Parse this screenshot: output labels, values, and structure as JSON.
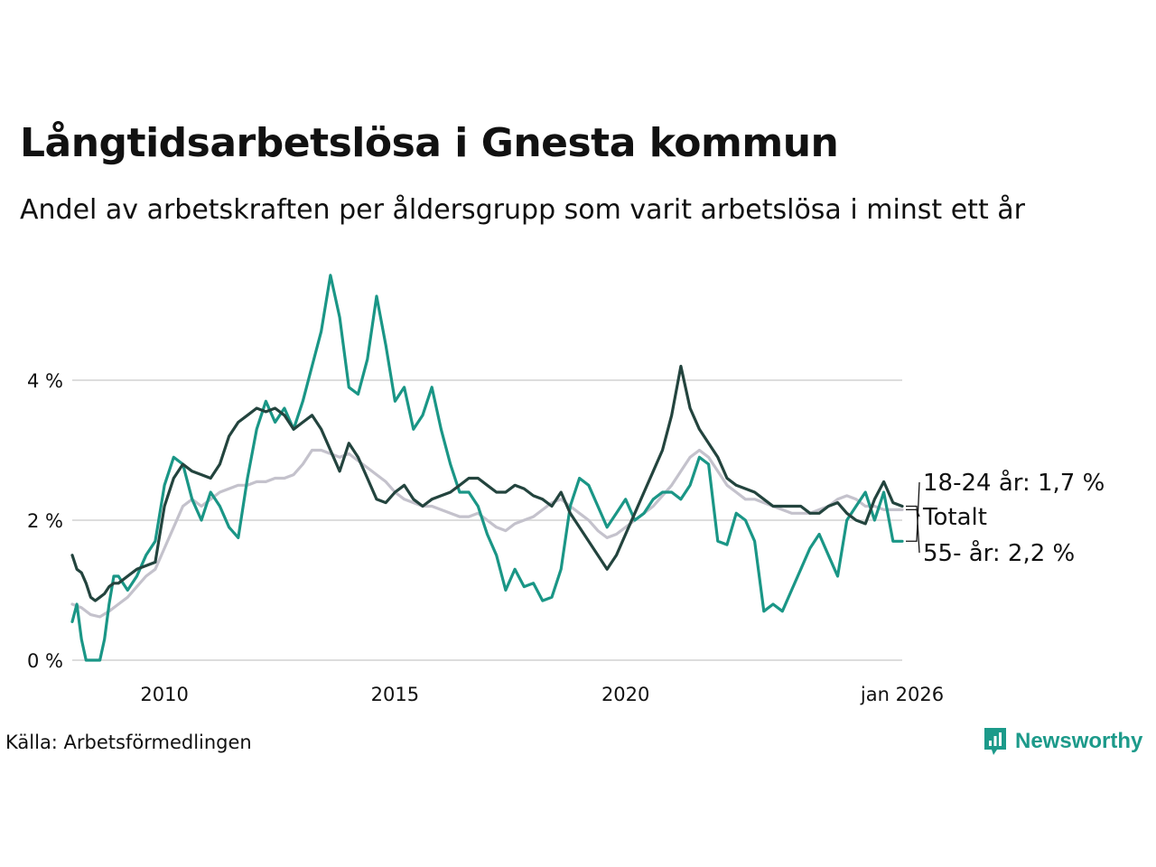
{
  "title": "Långtidsarbetslösa i Gnesta kommun",
  "subtitle": "Andel av arbetskraften per åldersgrupp som varit arbetslösa i minst ett år",
  "source": "Källa: Arbetsförmedlingen",
  "brand": "Newsworthy",
  "colors": {
    "totalt": "#c4c2cc",
    "young": "#1a9686",
    "old": "#23443e",
    "grid": "#dddddd",
    "brand": "#1c9a8a"
  },
  "chart_data": {
    "type": "line",
    "title": "Långtidsarbetslösa i Gnesta kommun",
    "xlabel": "",
    "ylabel": "",
    "x_range": [
      2008.0,
      2026.0
    ],
    "ylim": [
      0,
      4.6
    ],
    "y_ticks": [
      {
        "value": 0,
        "label": "0 %"
      },
      {
        "value": 2,
        "label": "2 %"
      },
      {
        "value": 4,
        "label": "4 %"
      }
    ],
    "x_ticks": [
      {
        "value": 2010,
        "label": "2010"
      },
      {
        "value": 2015,
        "label": "2015"
      },
      {
        "value": 2020,
        "label": "2020"
      },
      {
        "value": 2026,
        "label": "jan 2026"
      }
    ],
    "series": [
      {
        "name": "Totalt",
        "label": "Totalt",
        "x": [
          2008.0,
          2008.2,
          2008.4,
          2008.6,
          2008.8,
          2009.0,
          2009.2,
          2009.4,
          2009.6,
          2009.8,
          2010.0,
          2010.2,
          2010.4,
          2010.6,
          2010.8,
          2011.0,
          2011.2,
          2011.4,
          2011.6,
          2011.8,
          2012.0,
          2012.2,
          2012.4,
          2012.6,
          2012.8,
          2013.0,
          2013.2,
          2013.4,
          2013.6,
          2013.8,
          2014.0,
          2014.2,
          2014.4,
          2014.6,
          2014.8,
          2015.0,
          2015.2,
          2015.4,
          2015.6,
          2015.8,
          2016.0,
          2016.2,
          2016.4,
          2016.6,
          2016.8,
          2017.0,
          2017.2,
          2017.4,
          2017.6,
          2017.8,
          2018.0,
          2018.2,
          2018.4,
          2018.6,
          2018.8,
          2019.0,
          2019.2,
          2019.4,
          2019.6,
          2019.8,
          2020.0,
          2020.2,
          2020.4,
          2020.6,
          2020.8,
          2021.0,
          2021.2,
          2021.4,
          2021.6,
          2021.8,
          2022.0,
          2022.2,
          2022.4,
          2022.6,
          2022.8,
          2023.0,
          2023.2,
          2023.4,
          2023.6,
          2023.8,
          2024.0,
          2024.2,
          2024.4,
          2024.6,
          2024.8,
          2025.0,
          2025.2,
          2025.4,
          2025.6,
          2025.8,
          2026.0
        ],
        "values": [
          0.8,
          0.75,
          0.65,
          0.62,
          0.7,
          0.8,
          0.9,
          1.05,
          1.2,
          1.3,
          1.6,
          1.9,
          2.2,
          2.3,
          2.2,
          2.3,
          2.4,
          2.45,
          2.5,
          2.5,
          2.55,
          2.55,
          2.6,
          2.6,
          2.65,
          2.8,
          3.0,
          3.0,
          2.95,
          2.9,
          2.95,
          2.85,
          2.75,
          2.65,
          2.55,
          2.4,
          2.3,
          2.25,
          2.2,
          2.2,
          2.15,
          2.1,
          2.05,
          2.05,
          2.1,
          2.0,
          1.9,
          1.85,
          1.95,
          2.0,
          2.05,
          2.15,
          2.25,
          2.3,
          2.2,
          2.1,
          2.0,
          1.85,
          1.75,
          1.8,
          1.9,
          2.0,
          2.1,
          2.2,
          2.35,
          2.5,
          2.7,
          2.9,
          3.0,
          2.9,
          2.7,
          2.5,
          2.4,
          2.3,
          2.3,
          2.25,
          2.2,
          2.15,
          2.1,
          2.1,
          2.1,
          2.15,
          2.2,
          2.3,
          2.35,
          2.3,
          2.2,
          2.2,
          2.15,
          2.15,
          2.15
        ]
      },
      {
        "name": "18-24 år",
        "label": "18-24 år: 1,7 %",
        "x": [
          2008.0,
          2008.1,
          2008.2,
          2008.3,
          2008.4,
          2008.5,
          2008.6,
          2008.7,
          2008.8,
          2008.9,
          2009.0,
          2009.2,
          2009.4,
          2009.6,
          2009.8,
          2010.0,
          2010.2,
          2010.4,
          2010.6,
          2010.8,
          2011.0,
          2011.2,
          2011.4,
          2011.6,
          2011.8,
          2012.0,
          2012.2,
          2012.4,
          2012.6,
          2012.8,
          2013.0,
          2013.2,
          2013.4,
          2013.6,
          2013.8,
          2014.0,
          2014.2,
          2014.4,
          2014.6,
          2014.8,
          2015.0,
          2015.2,
          2015.4,
          2015.6,
          2015.8,
          2016.0,
          2016.2,
          2016.4,
          2016.6,
          2016.8,
          2017.0,
          2017.2,
          2017.4,
          2017.6,
          2017.8,
          2018.0,
          2018.2,
          2018.4,
          2018.6,
          2018.8,
          2019.0,
          2019.2,
          2019.4,
          2019.6,
          2019.8,
          2020.0,
          2020.2,
          2020.4,
          2020.6,
          2020.8,
          2021.0,
          2021.2,
          2021.4,
          2021.6,
          2021.8,
          2022.0,
          2022.2,
          2022.4,
          2022.6,
          2022.8,
          2023.0,
          2023.2,
          2023.4,
          2023.6,
          2023.8,
          2024.0,
          2024.2,
          2024.4,
          2024.6,
          2024.8,
          2025.0,
          2025.2,
          2025.4,
          2025.6,
          2025.8,
          2026.0
        ],
        "values": [
          0.55,
          0.8,
          0.3,
          0.0,
          0.0,
          0.0,
          0.0,
          0.3,
          0.8,
          1.2,
          1.2,
          1.0,
          1.2,
          1.5,
          1.7,
          2.5,
          2.9,
          2.8,
          2.3,
          2.0,
          2.4,
          2.2,
          1.9,
          1.75,
          2.6,
          3.3,
          3.7,
          3.4,
          3.6,
          3.3,
          3.7,
          4.2,
          4.7,
          5.5,
          4.9,
          3.9,
          3.8,
          4.3,
          5.2,
          4.5,
          3.7,
          3.9,
          3.3,
          3.5,
          3.9,
          3.3,
          2.8,
          2.4,
          2.4,
          2.2,
          1.8,
          1.5,
          1.0,
          1.3,
          1.05,
          1.1,
          0.85,
          0.9,
          1.3,
          2.2,
          2.6,
          2.5,
          2.2,
          1.9,
          2.1,
          2.3,
          2.0,
          2.1,
          2.3,
          2.4,
          2.4,
          2.3,
          2.5,
          2.9,
          2.8,
          1.7,
          1.65,
          2.1,
          2.0,
          1.7,
          0.7,
          0.8,
          0.7,
          1.0,
          1.3,
          1.6,
          1.8,
          1.5,
          1.2,
          2.0,
          2.2,
          2.4,
          2.0,
          2.4,
          1.7,
          1.7
        ]
      },
      {
        "name": "55- år",
        "label": "55- år: 2,2 %",
        "x": [
          2008.0,
          2008.1,
          2008.2,
          2008.3,
          2008.4,
          2008.5,
          2008.6,
          2008.7,
          2008.8,
          2008.9,
          2009.0,
          2009.2,
          2009.4,
          2009.6,
          2009.8,
          2010.0,
          2010.2,
          2010.4,
          2010.6,
          2010.8,
          2011.0,
          2011.2,
          2011.4,
          2011.6,
          2011.8,
          2012.0,
          2012.2,
          2012.4,
          2012.6,
          2012.8,
          2013.0,
          2013.2,
          2013.4,
          2013.6,
          2013.8,
          2014.0,
          2014.2,
          2014.4,
          2014.6,
          2014.8,
          2015.0,
          2015.2,
          2015.4,
          2015.6,
          2015.8,
          2016.0,
          2016.2,
          2016.4,
          2016.6,
          2016.8,
          2017.0,
          2017.2,
          2017.4,
          2017.6,
          2017.8,
          2018.0,
          2018.2,
          2018.4,
          2018.6,
          2018.8,
          2019.0,
          2019.2,
          2019.4,
          2019.6,
          2019.8,
          2020.0,
          2020.2,
          2020.4,
          2020.6,
          2020.8,
          2021.0,
          2021.2,
          2021.4,
          2021.6,
          2021.8,
          2022.0,
          2022.2,
          2022.4,
          2022.6,
          2022.8,
          2023.0,
          2023.2,
          2023.4,
          2023.6,
          2023.8,
          2024.0,
          2024.2,
          2024.4,
          2024.6,
          2024.8,
          2025.0,
          2025.2,
          2025.4,
          2025.6,
          2025.8,
          2026.0
        ],
        "values": [
          1.5,
          1.3,
          1.25,
          1.1,
          0.9,
          0.85,
          0.9,
          0.95,
          1.05,
          1.1,
          1.1,
          1.2,
          1.3,
          1.35,
          1.4,
          2.2,
          2.6,
          2.8,
          2.7,
          2.65,
          2.6,
          2.8,
          3.2,
          3.4,
          3.5,
          3.6,
          3.55,
          3.6,
          3.5,
          3.3,
          3.4,
          3.5,
          3.3,
          3.0,
          2.7,
          3.1,
          2.9,
          2.6,
          2.3,
          2.25,
          2.4,
          2.5,
          2.3,
          2.2,
          2.3,
          2.35,
          2.4,
          2.5,
          2.6,
          2.6,
          2.5,
          2.4,
          2.4,
          2.5,
          2.45,
          2.35,
          2.3,
          2.2,
          2.4,
          2.1,
          1.9,
          1.7,
          1.5,
          1.3,
          1.5,
          1.8,
          2.1,
          2.4,
          2.7,
          3.0,
          3.5,
          4.2,
          3.6,
          3.3,
          3.1,
          2.9,
          2.6,
          2.5,
          2.45,
          2.4,
          2.3,
          2.2,
          2.2,
          2.2,
          2.2,
          2.1,
          2.1,
          2.2,
          2.25,
          2.1,
          2.0,
          1.95,
          2.3,
          2.55,
          2.25,
          2.2
        ]
      }
    ]
  }
}
